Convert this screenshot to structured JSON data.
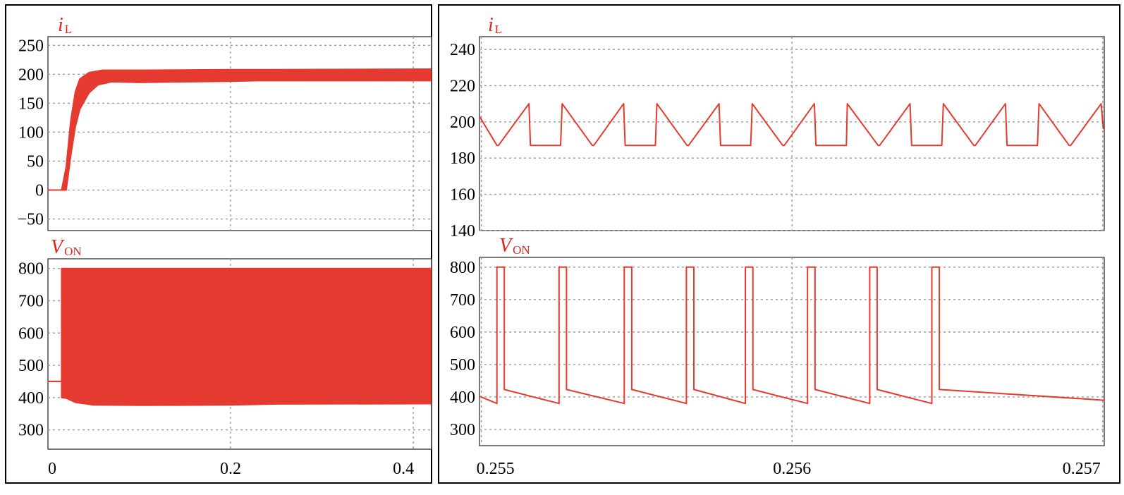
{
  "chart_data": [
    {
      "type": "line",
      "panel": "left",
      "subplots": [
        {
          "ylabel_main": "i",
          "ylabel_sub": "L",
          "ylim": [
            -70,
            265
          ],
          "yticks": [
            -50,
            0,
            50,
            100,
            150,
            200,
            250
          ],
          "ytick_labels": [
            "−50",
            "0",
            "50",
            "100",
            "150",
            "200",
            "250"
          ],
          "series": [
            {
              "envelope_upper": [
                [
                  0,
                  0
                ],
                [
                  0.015,
                  0
                ],
                [
                  0.02,
                  40
                ],
                [
                  0.025,
                  120
                ],
                [
                  0.03,
                  170
                ],
                [
                  0.035,
                  192
                ],
                [
                  0.045,
                  203
                ],
                [
                  0.06,
                  207
                ],
                [
                  0.1,
                  207
                ],
                [
                  0.2,
                  208
                ],
                [
                  0.23,
                  208
                ],
                [
                  0.42,
                  209
                ]
              ],
              "envelope_lower": [
                [
                  0,
                  0
                ],
                [
                  0.02,
                  0
                ],
                [
                  0.025,
                  60
                ],
                [
                  0.03,
                  110
                ],
                [
                  0.035,
                  140
                ],
                [
                  0.045,
                  168
                ],
                [
                  0.055,
                  182
                ],
                [
                  0.07,
                  187
                ],
                [
                  0.1,
                  186
                ],
                [
                  0.2,
                  188
                ],
                [
                  0.23,
                  189
                ],
                [
                  0.42,
                  189
                ]
              ]
            }
          ]
        },
        {
          "ylabel_main": "V",
          "ylabel_sub": "ON",
          "ylim": [
            240,
            830
          ],
          "yticks": [
            300,
            400,
            500,
            600,
            700,
            800
          ],
          "ytick_labels": [
            "300",
            "400",
            "500",
            "600",
            "700",
            "800"
          ],
          "series": [
            {
              "envelope_upper": [
                [
                  0,
                  450
                ],
                [
                  0.015,
                  450
                ],
                [
                  0.015,
                  800
                ],
                [
                  0.42,
                  800
                ]
              ],
              "envelope_lower": [
                [
                  0,
                  450
                ],
                [
                  0.015,
                  450
                ],
                [
                  0.015,
                  400
                ],
                [
                  0.02,
                  398
                ],
                [
                  0.03,
                  385
                ],
                [
                  0.05,
                  377
                ],
                [
                  0.1,
                  376
                ],
                [
                  0.2,
                  377
                ],
                [
                  0.25,
                  380
                ],
                [
                  0.42,
                  381
                ]
              ]
            }
          ]
        }
      ],
      "xlim": [
        0,
        0.42
      ],
      "xticks": [
        0,
        0.2,
        0.4
      ],
      "xtick_labels": [
        "0",
        "0.2",
        "0.4"
      ],
      "grid": true
    },
    {
      "type": "line",
      "panel": "right",
      "subplots": [
        {
          "ylabel_main": "i",
          "ylabel_sub": "L",
          "ylim": [
            140,
            247
          ],
          "yticks": [
            140,
            160,
            180,
            200,
            220,
            240
          ],
          "ytick_labels": [
            "140",
            "160",
            "180",
            "200",
            "220",
            "240"
          ],
          "series": [
            {
              "x": [
                0.254994,
                0.25505,
                0.255055,
                0.255153,
                0.255158,
                0.255255,
                0.25526,
                0.255357,
                0.255362,
                0.255458,
                0.255463,
                0.25556,
                0.255565,
                0.255662,
                0.255667,
                0.255765,
                0.25577,
                0.255867,
                0.255872,
                0.25597,
                0.255975,
                0.256072,
                0.256077,
                0.256175,
                0.256178,
                0.256277,
                0.256282,
                0.25638,
                0.256385,
                0.256482,
                0.256487,
                0.256585,
                0.25659,
                0.256687,
                0.256692,
                0.25679,
                0.256795,
                0.256892,
                0.256897,
                0.256995,
                0.257002
              ],
              "y": [
                203,
                187,
                187,
                210,
                187,
                187,
                210,
                187,
                187,
                210,
                187,
                187,
                210,
                187,
                187,
                210,
                187,
                187,
                210,
                187,
                187,
                210,
                187,
                187,
                210,
                187,
                187,
                210,
                187,
                187,
                210,
                187,
                187,
                210,
                187,
                187,
                210,
                187,
                187,
                210,
                196
              ]
            }
          ]
        },
        {
          "ylabel_main": "V",
          "ylabel_sub": "ON",
          "ylim": [
            250,
            830
          ],
          "yticks": [
            300,
            400,
            500,
            600,
            700,
            800
          ],
          "ytick_labels": [
            "300",
            "400",
            "500",
            "600",
            "700",
            "800"
          ],
          "series": [
            {
              "pulse_start": [
                0.25505,
                0.25525,
                0.25546,
                0.25566,
                0.25585,
                0.25605,
                0.25625,
                0.25645
              ],
              "pulse_width": 2.4e-05,
              "off_high": 423,
              "off_low": 380,
              "start_value": 402,
              "end_value": 390,
              "on_value": 800
            }
          ]
        }
      ],
      "xlim": [
        0.254994,
        0.257005
      ],
      "xticks": [
        0.255,
        0.256,
        0.257
      ],
      "xtick_labels": [
        "0.255",
        "0.256",
        "0.257"
      ],
      "grid": true
    }
  ]
}
